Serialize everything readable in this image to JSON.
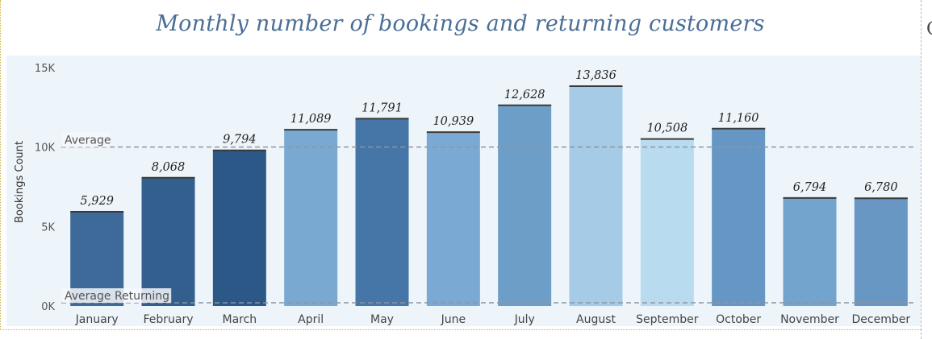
{
  "chart_data": {
    "type": "bar",
    "title": "Monthly number of bookings and returning customers",
    "ylabel": "Bookings Count",
    "xlabel": "",
    "ylim": [
      0,
      15000
    ],
    "yticks": [
      {
        "value": 0,
        "label": "0K"
      },
      {
        "value": 5000,
        "label": "5K"
      },
      {
        "value": 10000,
        "label": "10K"
      },
      {
        "value": 15000,
        "label": "15K"
      }
    ],
    "categories": [
      "January",
      "February",
      "March",
      "April",
      "May",
      "June",
      "July",
      "August",
      "September",
      "October",
      "November",
      "December"
    ],
    "values": [
      5929,
      8068,
      9794,
      11089,
      11791,
      10939,
      12628,
      13836,
      10508,
      11160,
      6794,
      6780
    ],
    "value_labels": [
      "5,929",
      "8,068",
      "9,794",
      "11,089",
      "11,791",
      "10,939",
      "12,628",
      "13,836",
      "10,508",
      "11,160",
      "6,794",
      "6,780"
    ],
    "bar_colors": [
      "#3d6a98",
      "#335f8e",
      "#2b5887",
      "#79a9d1",
      "#4676a7",
      "#7aaad3",
      "#6d9ec8",
      "#a5cbe6",
      "#b8dbef",
      "#6696c3",
      "#73a4cd",
      "#6897c3"
    ],
    "reference_lines": [
      {
        "label": "Average",
        "value": 10000
      },
      {
        "label": "Average Returning",
        "value": 0
      }
    ],
    "grid": false,
    "legend": "none"
  },
  "side_glyph": "C"
}
